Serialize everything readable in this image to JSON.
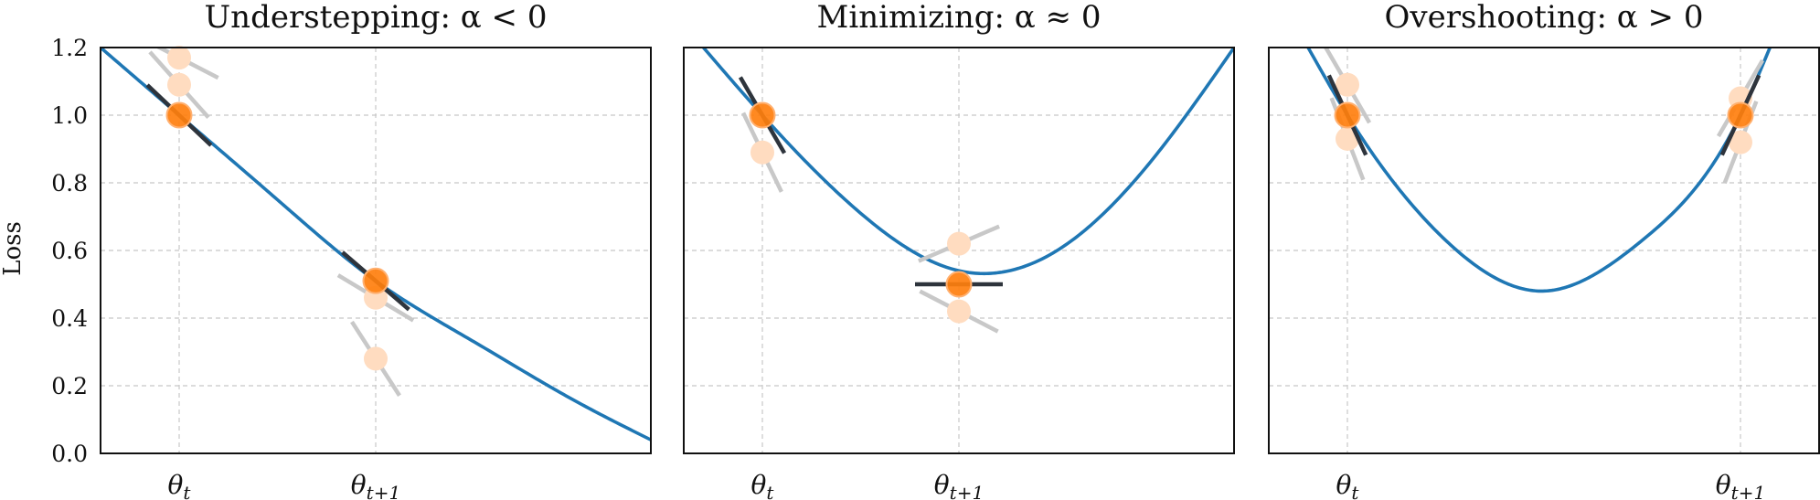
{
  "chart_data": [
    {
      "type": "line",
      "title": "Understepping: α < 0",
      "ylabel": "Loss",
      "ylim": [
        0,
        1.2
      ],
      "xlim": [
        -0.4,
        2.4
      ],
      "yticks": [
        0.0,
        0.2,
        0.4,
        0.6,
        0.8,
        1.0,
        1.2
      ],
      "ytick_labels": [
        "0.0",
        "0.2",
        "0.4",
        "0.6",
        "0.8",
        "1.0",
        "1.2"
      ],
      "xticks": [
        {
          "x": 0,
          "label": "θ",
          "sub": "t"
        },
        {
          "x": 1,
          "label": "θ",
          "sub": "t+1"
        }
      ],
      "grid": true,
      "curve": {
        "x": [
          -0.4,
          0,
          0.5,
          1,
          1.5,
          2,
          2.4
        ],
        "y": [
          1.2,
          1.0,
          0.75,
          0.51,
          0.33,
          0.16,
          0.04
        ]
      },
      "main_points": [
        {
          "x": 0,
          "y": 1.0,
          "slope": -0.55
        },
        {
          "x": 1,
          "y": 0.51,
          "slope": -0.5
        }
      ],
      "sample_points": [
        {
          "x": 0,
          "y": 1.17,
          "slope": -0.3
        },
        {
          "x": 0,
          "y": 1.09,
          "slope": -0.65
        },
        {
          "x": 1,
          "y": 0.46,
          "slope": -0.35
        },
        {
          "x": 1,
          "y": 0.28,
          "slope": -0.9
        }
      ]
    },
    {
      "type": "line",
      "title": "Minimizing: α ≈ 0",
      "ylim": [
        0,
        1.2
      ],
      "xlim": [
        -0.4,
        2.4
      ],
      "yticks": [
        0.0,
        0.2,
        0.4,
        0.6,
        0.8,
        1.0,
        1.2
      ],
      "xticks": [
        {
          "x": 0,
          "label": "θ",
          "sub": "t"
        },
        {
          "x": 1,
          "label": "θ",
          "sub": "t+1"
        }
      ],
      "grid": true,
      "curve": {
        "x": [
          -0.3,
          0,
          0.5,
          1,
          1.5,
          2,
          2.4
        ],
        "y": [
          1.2,
          1.0,
          0.71,
          0.54,
          0.6,
          0.88,
          1.2
        ]
      },
      "main_points": [
        {
          "x": 0,
          "y": 1.0,
          "slope": -1.0
        },
        {
          "x": 1,
          "y": 0.5,
          "slope": 0.0
        }
      ],
      "sample_points": [
        {
          "x": 0,
          "y": 0.89,
          "slope": -1.2
        },
        {
          "x": 1,
          "y": 0.62,
          "slope": 0.25
        },
        {
          "x": 1,
          "y": 0.42,
          "slope": -0.3
        }
      ]
    },
    {
      "type": "line",
      "title": "Overshooting: α > 0",
      "ylim": [
        0,
        1.2
      ],
      "xlim": [
        -0.4,
        2.4
      ],
      "yticks": [
        0.0,
        0.2,
        0.4,
        0.6,
        0.8,
        1.0,
        1.2
      ],
      "xticks": [
        {
          "x": 0,
          "label": "θ",
          "sub": "t"
        },
        {
          "x": 2,
          "label": "θ",
          "sub": "t+1"
        }
      ],
      "grid": true,
      "curve": {
        "x": [
          -0.2,
          0,
          0.5,
          1,
          1.5,
          2,
          2.15
        ],
        "y": [
          1.2,
          1.0,
          0.63,
          0.48,
          0.63,
          1.0,
          1.2
        ]
      },
      "main_points": [
        {
          "x": 0,
          "y": 1.0,
          "slope": -1.25
        },
        {
          "x": 2,
          "y": 1.0,
          "slope": 1.25
        }
      ],
      "sample_points": [
        {
          "x": 0,
          "y": 1.09,
          "slope": -1.0
        },
        {
          "x": 0,
          "y": 0.93,
          "slope": -1.5
        },
        {
          "x": 2,
          "y": 1.05,
          "slope": 1.0
        },
        {
          "x": 2,
          "y": 0.92,
          "slope": 1.5
        }
      ]
    }
  ],
  "colors": {
    "curve": "#1f77b4",
    "point": "#ff7f0e",
    "point_faint": "#ffdcc0",
    "tangent": "#2e343c",
    "tangent_faint": "#c8c8c8",
    "grid": "#c8c8c8"
  }
}
